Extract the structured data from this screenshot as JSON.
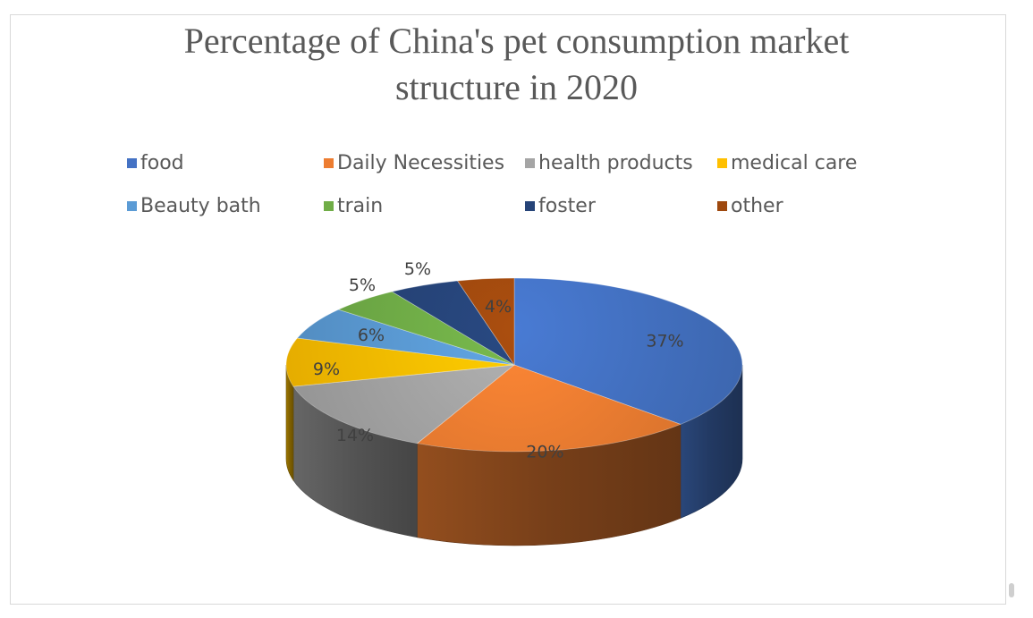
{
  "chart_data": {
    "type": "pie",
    "title": "Percentage of China's pet consumption market structure in 2020",
    "title_lines": [
      "Percentage of China's pet consumption market",
      "structure in 2020"
    ],
    "legend_position": "top",
    "is_3d": true,
    "slices": [
      {
        "name": "food",
        "value": 37,
        "label": "37%",
        "color": "#4472C4"
      },
      {
        "name": "Daily Necessities",
        "value": 20,
        "label": "20%",
        "color": "#ED7D31"
      },
      {
        "name": "health products",
        "value": 14,
        "label": "14%",
        "color": "#A5A5A5"
      },
      {
        "name": "medical care",
        "value": 9,
        "label": "9%",
        "color": "#FFC000"
      },
      {
        "name": "Beauty bath",
        "value": 6,
        "label": "6%",
        "color": "#5B9BD5"
      },
      {
        "name": "train",
        "value": 5,
        "label": "5%",
        "color": "#70AD47"
      },
      {
        "name": "foster",
        "value": 5,
        "label": "5%",
        "color": "#264478"
      },
      {
        "name": "other",
        "value": 4,
        "label": "4%",
        "color": "#9E480E"
      }
    ]
  }
}
